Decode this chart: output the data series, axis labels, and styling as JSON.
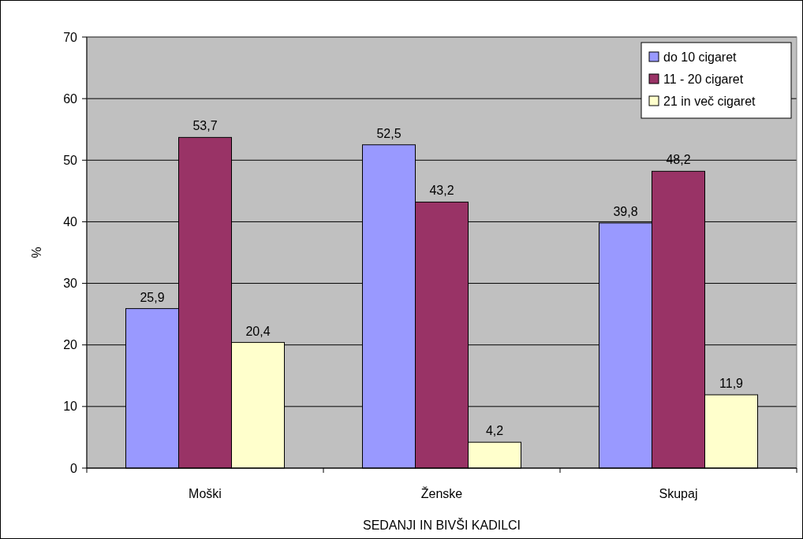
{
  "chart_data": {
    "type": "bar",
    "xlabel": "SEDANJI IN BIVŠI KADILCI",
    "ylabel": "%",
    "categories": [
      "Moški",
      "Ženske",
      "Skupaj"
    ],
    "series": [
      {
        "name": "do 10 cigaret",
        "color": "#9999ff",
        "values": [
          25.9,
          52.5,
          39.8
        ],
        "value_labels": [
          "25,9",
          "52,5",
          "39,8"
        ]
      },
      {
        "name": "11 - 20 cigaret",
        "color": "#993366",
        "values": [
          53.7,
          43.2,
          48.2
        ],
        "value_labels": [
          "53,7",
          "43,2",
          "48,2"
        ]
      },
      {
        "name": "21 in več cigaret",
        "color": "#ffffcc",
        "values": [
          20.4,
          4.2,
          11.9
        ],
        "value_labels": [
          "20,4",
          "4,2",
          "11,9"
        ]
      }
    ],
    "ylim": [
      0,
      70
    ],
    "yticks": [
      0,
      10,
      20,
      30,
      40,
      50,
      60,
      70
    ],
    "grid": "y",
    "legend": "top right"
  }
}
